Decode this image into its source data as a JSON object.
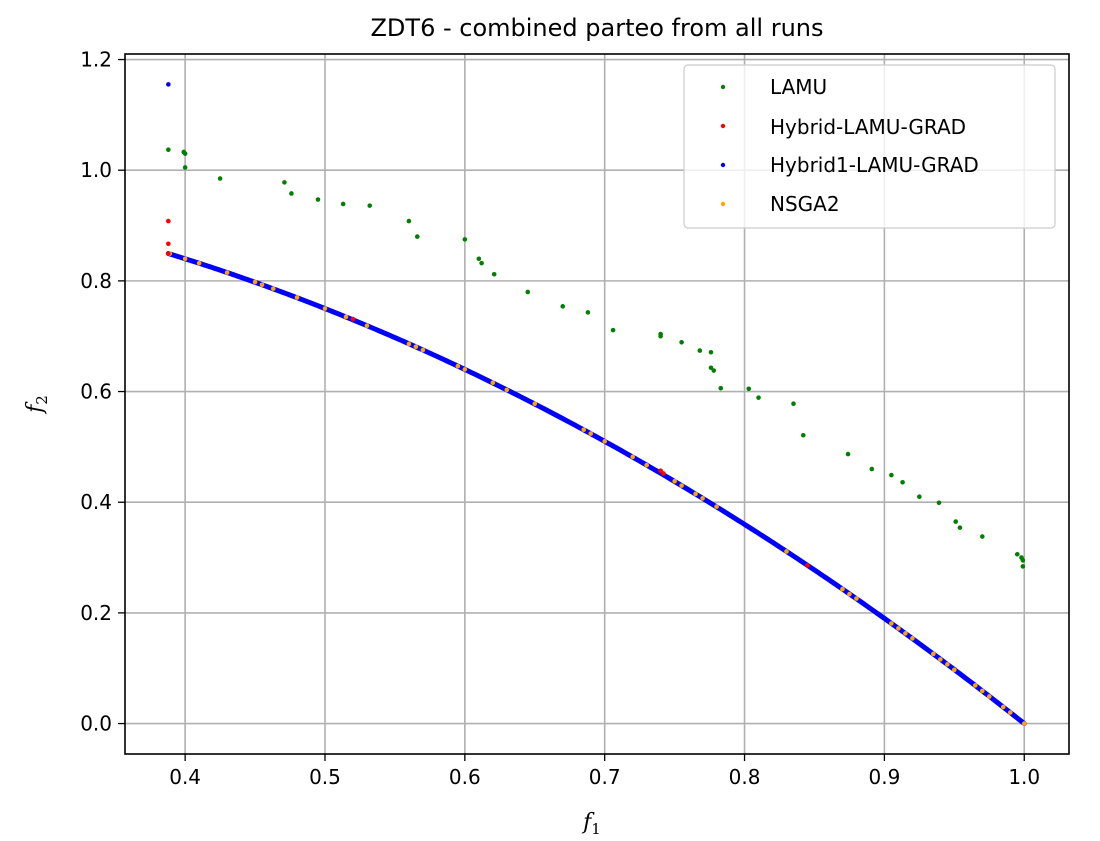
{
  "chart_data": {
    "type": "scatter",
    "title": "ZDT6 - combined parteo from all runs",
    "xlabel": "f",
    "xlabel_sub": "1",
    "ylabel": "f",
    "ylabel_sub": "2",
    "xlim": [
      0.357,
      1.032
    ],
    "ylim": [
      -0.055,
      1.21
    ],
    "xticks": [
      "0.4",
      "0.5",
      "0.6",
      "0.7",
      "0.8",
      "0.9",
      "1.0"
    ],
    "yticks": [
      "0.0",
      "0.2",
      "0.4",
      "0.6",
      "0.8",
      "1.0",
      "1.2"
    ],
    "grid": true,
    "legend_position": "top-right",
    "series": [
      {
        "name": "LAMU",
        "color": "#008000",
        "points": [
          [
            0.388,
            1.037
          ],
          [
            0.399,
            1.033
          ],
          [
            0.4,
            1.03
          ],
          [
            0.4,
            1.005
          ],
          [
            0.425,
            0.985
          ],
          [
            0.471,
            0.978
          ],
          [
            0.476,
            0.958
          ],
          [
            0.495,
            0.947
          ],
          [
            0.513,
            0.939
          ],
          [
            0.532,
            0.936
          ],
          [
            0.56,
            0.908
          ],
          [
            0.566,
            0.88
          ],
          [
            0.6,
            0.875
          ],
          [
            0.61,
            0.84
          ],
          [
            0.612,
            0.832
          ],
          [
            0.621,
            0.812
          ],
          [
            0.645,
            0.78
          ],
          [
            0.67,
            0.754
          ],
          [
            0.688,
            0.743
          ],
          [
            0.706,
            0.711
          ],
          [
            0.74,
            0.704
          ],
          [
            0.74,
            0.7
          ],
          [
            0.755,
            0.689
          ],
          [
            0.768,
            0.674
          ],
          [
            0.776,
            0.671
          ],
          [
            0.776,
            0.643
          ],
          [
            0.778,
            0.638
          ],
          [
            0.783,
            0.606
          ],
          [
            0.803,
            0.605
          ],
          [
            0.81,
            0.589
          ],
          [
            0.835,
            0.578
          ],
          [
            0.842,
            0.521
          ],
          [
            0.874,
            0.487
          ],
          [
            0.891,
            0.46
          ],
          [
            0.905,
            0.449
          ],
          [
            0.913,
            0.436
          ],
          [
            0.925,
            0.41
          ],
          [
            0.939,
            0.399
          ],
          [
            0.951,
            0.365
          ],
          [
            0.954,
            0.354
          ],
          [
            0.97,
            0.338
          ],
          [
            0.995,
            0.306
          ],
          [
            0.998,
            0.3
          ],
          [
            0.999,
            0.295
          ],
          [
            0.999,
            0.284
          ]
        ]
      },
      {
        "name": "Hybrid-LAMU-GRAD",
        "color": "#ff0000",
        "points": [
          [
            0.388,
            0.908
          ],
          [
            0.388,
            0.867
          ],
          [
            0.388,
            0.849
          ],
          [
            0.52,
            0.731
          ],
          [
            0.74,
            0.457
          ],
          [
            0.742,
            0.452
          ],
          [
            0.845,
            0.286
          ]
        ]
      },
      {
        "name": "Hybrid1-LAMU-GRAD",
        "color": "#0000ff",
        "points": [
          [
            0.388,
            1.155
          ]
        ]
      },
      {
        "name": "NSGA2",
        "color": "#ffa500",
        "points": [
          [
            0.389,
            0.849
          ],
          [
            0.4,
            0.84
          ],
          [
            0.41,
            0.832
          ],
          [
            0.43,
            0.815
          ],
          [
            0.45,
            0.798
          ],
          [
            0.455,
            0.793
          ],
          [
            0.463,
            0.786
          ],
          [
            0.48,
            0.77
          ],
          [
            0.5,
            0.75
          ],
          [
            0.515,
            0.735
          ],
          [
            0.53,
            0.719
          ],
          [
            0.56,
            0.686
          ],
          [
            0.565,
            0.681
          ],
          [
            0.57,
            0.675
          ],
          [
            0.595,
            0.646
          ],
          [
            0.6,
            0.64
          ],
          [
            0.62,
            0.616
          ],
          [
            0.63,
            0.603
          ],
          [
            0.65,
            0.578
          ],
          [
            0.685,
            0.531
          ],
          [
            0.69,
            0.524
          ],
          [
            0.7,
            0.51
          ],
          [
            0.72,
            0.482
          ],
          [
            0.73,
            0.467
          ],
          [
            0.75,
            0.438
          ],
          [
            0.755,
            0.43
          ],
          [
            0.765,
            0.415
          ],
          [
            0.77,
            0.407
          ],
          [
            0.78,
            0.392
          ],
          [
            0.83,
            0.311
          ],
          [
            0.87,
            0.243
          ],
          [
            0.875,
            0.234
          ],
          [
            0.88,
            0.226
          ],
          [
            0.905,
            0.181
          ],
          [
            0.91,
            0.172
          ],
          [
            0.915,
            0.163
          ],
          [
            0.92,
            0.154
          ],
          [
            0.935,
            0.126
          ],
          [
            0.94,
            0.116
          ],
          [
            0.945,
            0.107
          ],
          [
            0.95,
            0.097
          ],
          [
            0.965,
            0.069
          ],
          [
            0.97,
            0.059
          ],
          [
            0.975,
            0.049
          ],
          [
            0.985,
            0.03
          ],
          [
            0.99,
            0.02
          ],
          [
            1.0,
            0.0
          ]
        ]
      }
    ],
    "front": {
      "x_min": 0.388,
      "x_max": 1.0,
      "color": "#0000ff"
    }
  }
}
